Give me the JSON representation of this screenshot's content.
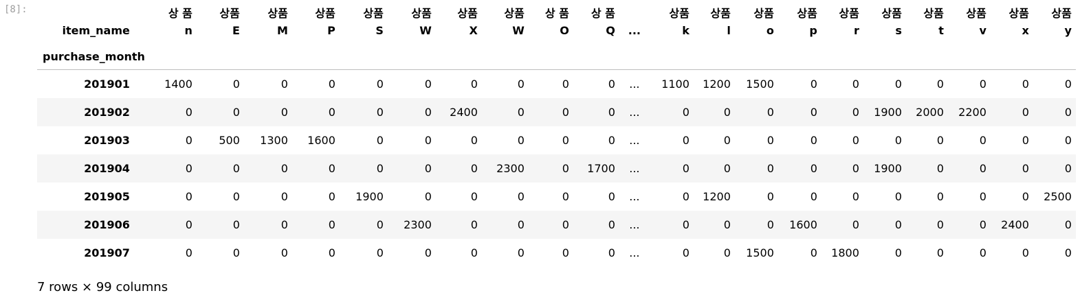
{
  "cell_prompt": "[8]:",
  "columns_label": "item_name",
  "index_label": "purchase_month",
  "ellipsis": "...",
  "columns": [
    {
      "top": "상 품",
      "bottom": "n"
    },
    {
      "top": "상품",
      "bottom": "E"
    },
    {
      "top": "상품",
      "bottom": "M"
    },
    {
      "top": "상품",
      "bottom": "P"
    },
    {
      "top": "상품",
      "bottom": "S"
    },
    {
      "top": "상품",
      "bottom": "W"
    },
    {
      "top": "상품",
      "bottom": "X"
    },
    {
      "top": "상품",
      "bottom": "W"
    },
    {
      "top": "상 품",
      "bottom": "O"
    },
    {
      "top": "상 품",
      "bottom": "Q"
    },
    {
      "top": "상품",
      "bottom": "k"
    },
    {
      "top": "상품",
      "bottom": "l"
    },
    {
      "top": "상품",
      "bottom": "o"
    },
    {
      "top": "상품",
      "bottom": "p"
    },
    {
      "top": "상품",
      "bottom": "r"
    },
    {
      "top": "상품",
      "bottom": "s"
    },
    {
      "top": "상품",
      "bottom": "t"
    },
    {
      "top": "상품",
      "bottom": "v"
    },
    {
      "top": "상품",
      "bottom": "x"
    },
    {
      "top": "상품",
      "bottom": "y"
    }
  ],
  "rows": [
    {
      "index": "201901",
      "values": [
        "1400",
        "0",
        "0",
        "0",
        "0",
        "0",
        "0",
        "0",
        "0",
        "0",
        "1100",
        "1200",
        "1500",
        "0",
        "0",
        "0",
        "0",
        "0",
        "0",
        "0"
      ]
    },
    {
      "index": "201902",
      "values": [
        "0",
        "0",
        "0",
        "0",
        "0",
        "0",
        "2400",
        "0",
        "0",
        "0",
        "0",
        "0",
        "0",
        "0",
        "0",
        "1900",
        "2000",
        "2200",
        "0",
        "0"
      ]
    },
    {
      "index": "201903",
      "values": [
        "0",
        "500",
        "1300",
        "1600",
        "0",
        "0",
        "0",
        "0",
        "0",
        "0",
        "0",
        "0",
        "0",
        "0",
        "0",
        "0",
        "0",
        "0",
        "0",
        "0"
      ]
    },
    {
      "index": "201904",
      "values": [
        "0",
        "0",
        "0",
        "0",
        "0",
        "0",
        "0",
        "2300",
        "0",
        "1700",
        "0",
        "0",
        "0",
        "0",
        "0",
        "1900",
        "0",
        "0",
        "0",
        "0"
      ]
    },
    {
      "index": "201905",
      "values": [
        "0",
        "0",
        "0",
        "0",
        "1900",
        "0",
        "0",
        "0",
        "0",
        "0",
        "0",
        "1200",
        "0",
        "0",
        "0",
        "0",
        "0",
        "0",
        "0",
        "2500"
      ]
    },
    {
      "index": "201906",
      "values": [
        "0",
        "0",
        "0",
        "0",
        "0",
        "2300",
        "0",
        "0",
        "0",
        "0",
        "0",
        "0",
        "0",
        "1600",
        "0",
        "0",
        "0",
        "0",
        "2400",
        "0"
      ]
    },
    {
      "index": "201907",
      "values": [
        "0",
        "0",
        "0",
        "0",
        "0",
        "0",
        "0",
        "0",
        "0",
        "0",
        "0",
        "0",
        "1500",
        "0",
        "1800",
        "0",
        "0",
        "0",
        "0",
        "0"
      ]
    }
  ],
  "shape_text": "7 rows × 99 columns"
}
